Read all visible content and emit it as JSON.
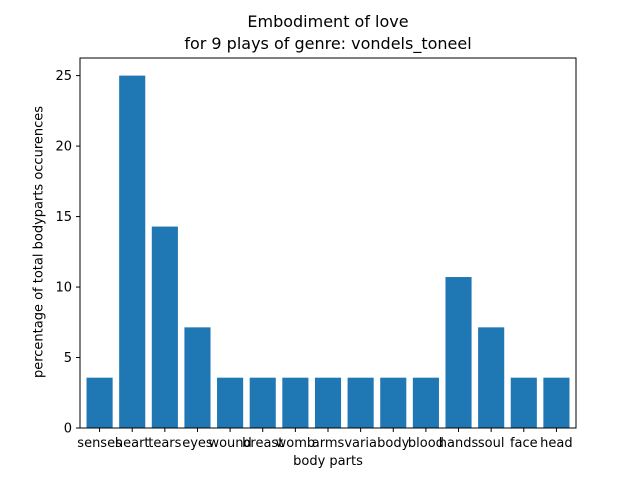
{
  "chart_data": {
    "type": "bar",
    "title_lines": [
      "Embodiment of love",
      "for 9 plays of genre: vondels_toneel"
    ],
    "xlabel": "body parts",
    "ylabel": "percentage of total bodyparts occurences",
    "categories": [
      "senses",
      "heart",
      "tears",
      "eyes",
      "wound",
      "breast",
      "womb",
      "arms",
      "varia",
      "body",
      "blood",
      "hands",
      "soul",
      "face",
      "head"
    ],
    "values": [
      3.57,
      25.0,
      14.29,
      7.14,
      3.57,
      3.57,
      3.57,
      3.57,
      3.57,
      3.57,
      3.57,
      10.71,
      7.14,
      3.57,
      3.57
    ],
    "yticks": [
      0,
      5,
      10,
      15,
      20,
      25
    ],
    "ylim": [
      0,
      26.25
    ],
    "bar_color": "#1f77b4",
    "grid": false,
    "legend": "none"
  }
}
